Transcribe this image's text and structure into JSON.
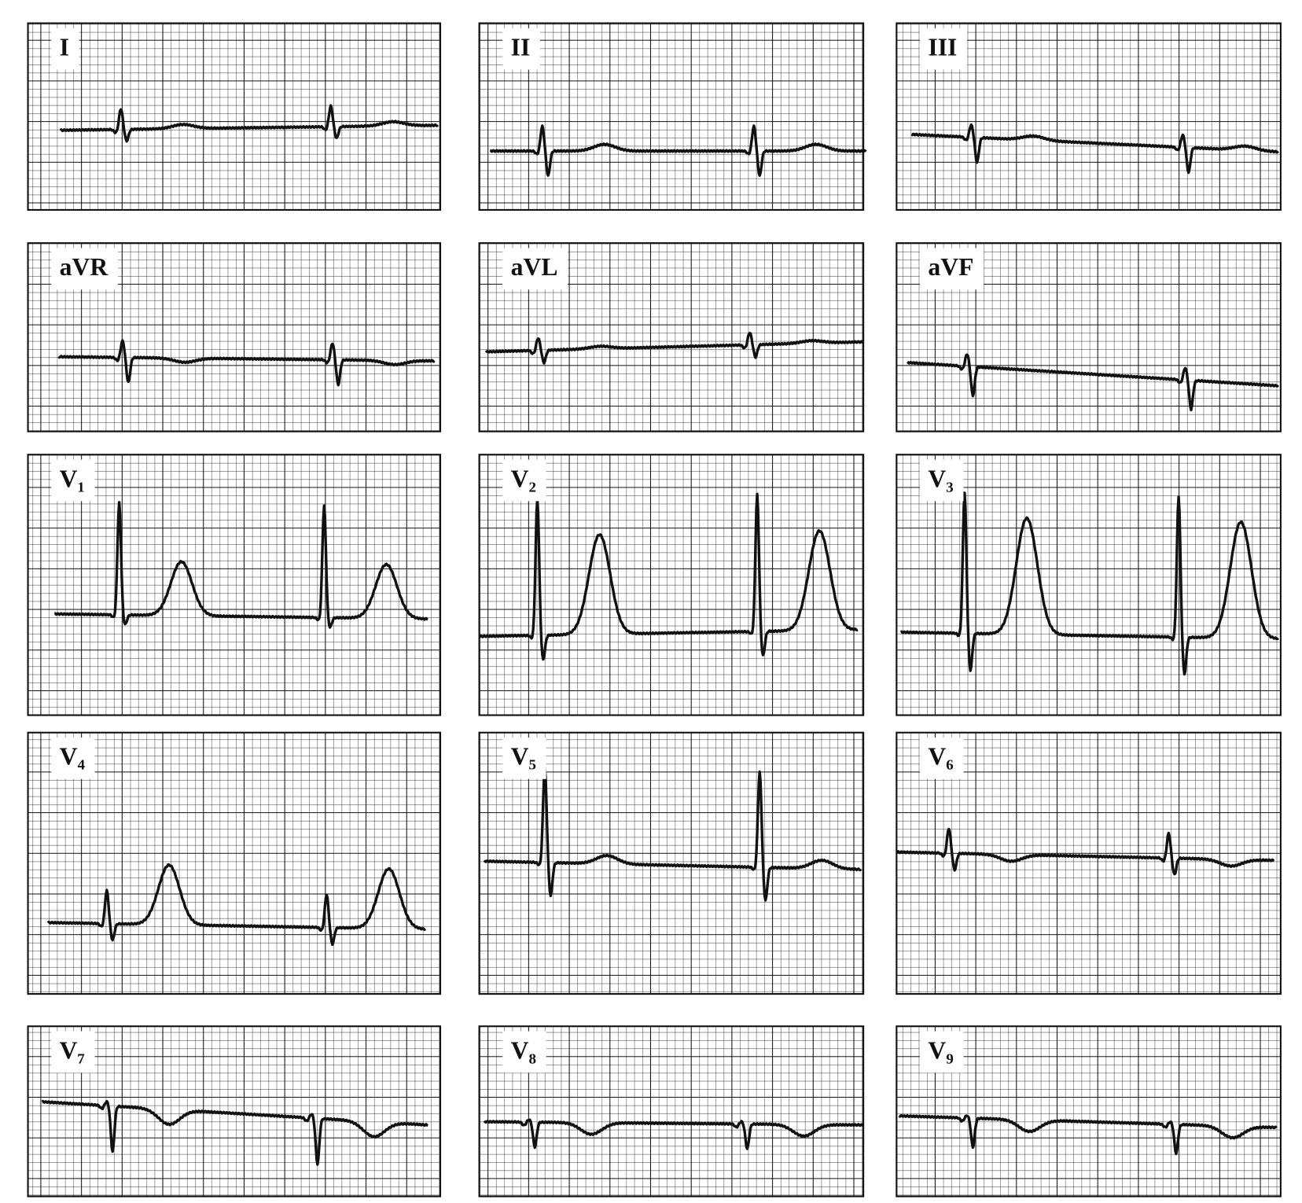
{
  "leads": [
    {
      "label": "I"
    },
    {
      "label": "II"
    },
    {
      "label": "III"
    },
    {
      "label": "aVR"
    },
    {
      "label": "aVL"
    },
    {
      "label": "aVF"
    },
    {
      "label": "V₁"
    },
    {
      "label": "V₂"
    },
    {
      "label": "V₃"
    },
    {
      "label": "V₄"
    },
    {
      "label": "V₅"
    },
    {
      "label": "V₆"
    },
    {
      "label": "V₇"
    },
    {
      "label": "V₈"
    },
    {
      "label": "V₉"
    }
  ]
}
